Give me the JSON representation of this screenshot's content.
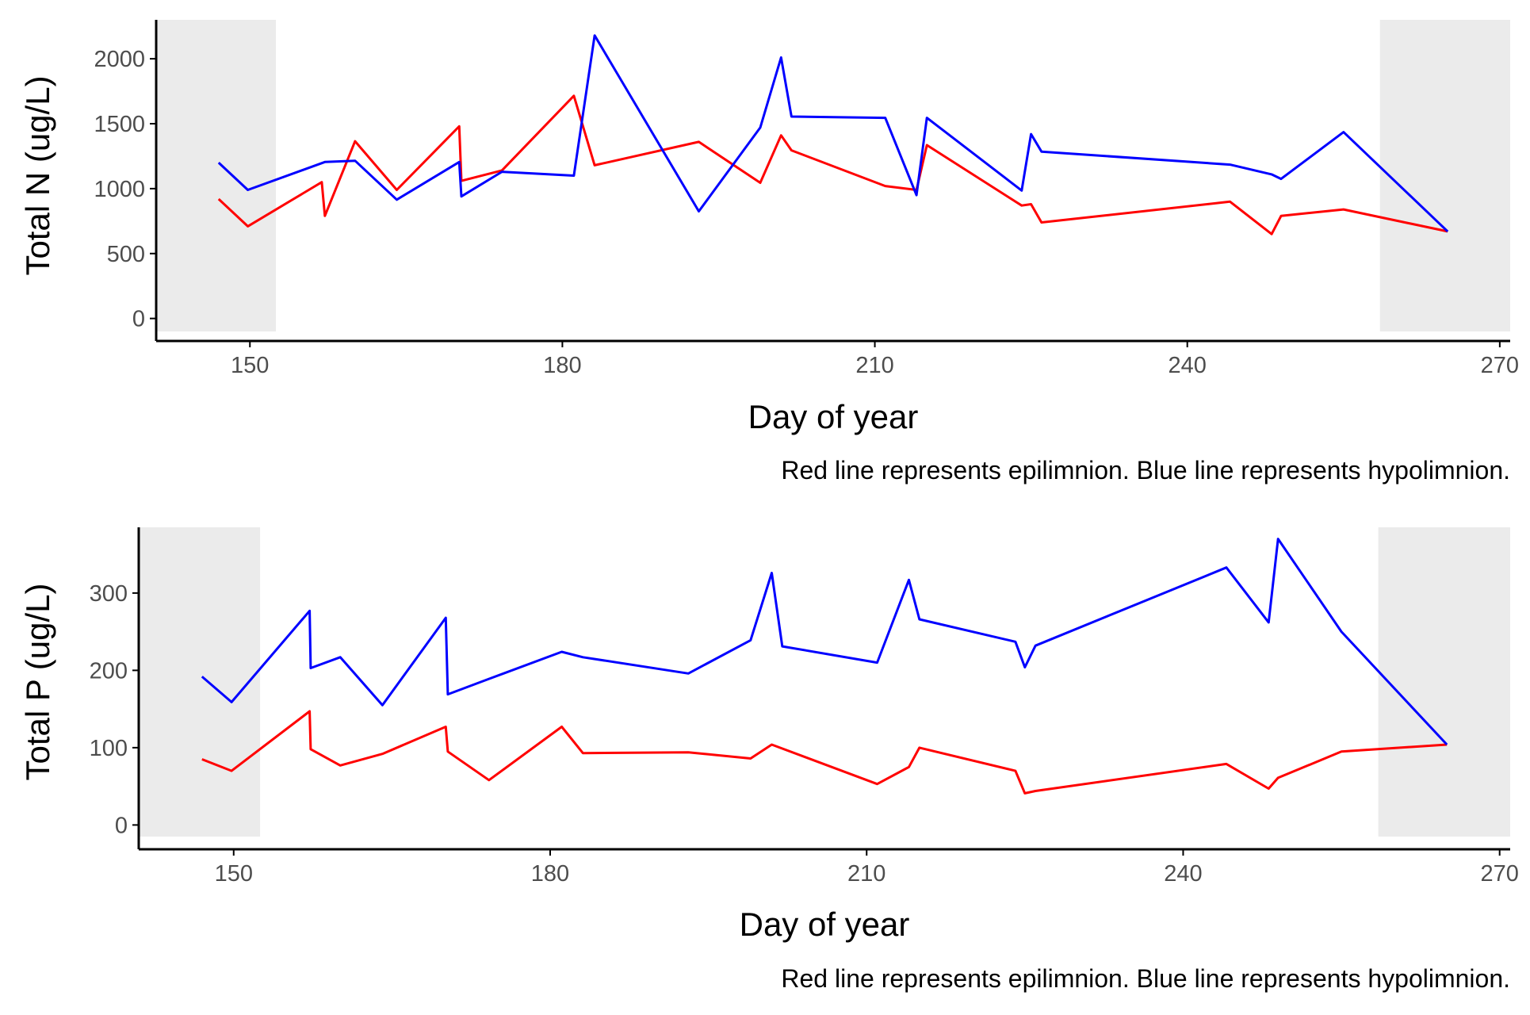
{
  "colors": {
    "epilimnion": "#ff0000",
    "hypolimnion": "#0000ff",
    "shade": "#ebebeb",
    "axis": "#000000",
    "tick_text": "#4d4d4d"
  },
  "chart_data": [
    {
      "type": "line",
      "xlabel": "Day of year",
      "ylabel": "Total N (ug/L)",
      "caption": "Red line represents epilimnion. Blue line represents hypolimnion.",
      "xlim": [
        141,
        271
      ],
      "ylim": [
        -100,
        2300
      ],
      "x_ticks": [
        150,
        180,
        210,
        240,
        270
      ],
      "y_ticks": [
        0,
        500,
        1000,
        1500,
        2000
      ],
      "grid": false,
      "shaded_ranges": [
        [
          141,
          152.5
        ],
        [
          258.5,
          271
        ]
      ],
      "series": [
        {
          "color": "red",
          "x": [
            147,
            149.8,
            156.9,
            157.2,
            160.1,
            164.1,
            170.1,
            170.3,
            174.2,
            181.1,
            183.1,
            193.1,
            199.0,
            201.0,
            202.0,
            211.0,
            214.0,
            215.0,
            224.1,
            225.0,
            226.0,
            244.1,
            248.1,
            249.0,
            255.0,
            265.0
          ],
          "y": [
            920,
            710,
            1050,
            790,
            1365,
            990,
            1480,
            1060,
            1140,
            1715,
            1180,
            1360,
            1045,
            1410,
            1295,
            1020,
            990,
            1335,
            870,
            880,
            740,
            900,
            650,
            790,
            840,
            670
          ]
        },
        {
          "color": "blue",
          "x": [
            147,
            149.8,
            157.2,
            160.1,
            164.1,
            170.1,
            170.3,
            174.2,
            181.1,
            183.1,
            193.1,
            199.0,
            201.0,
            202.0,
            211.0,
            214.0,
            215.0,
            224.1,
            225.0,
            226.0,
            244.1,
            248.1,
            249.0,
            255.0,
            265.0
          ],
          "y": [
            1200,
            990,
            1205,
            1215,
            915,
            1205,
            940,
            1130,
            1100,
            2180,
            825,
            1470,
            2010,
            1555,
            1545,
            950,
            1545,
            985,
            1420,
            1285,
            1185,
            1110,
            1075,
            1435,
            670
          ]
        }
      ]
    },
    {
      "type": "line",
      "xlabel": "Day of year",
      "ylabel": "Total P (ug/L)",
      "caption": "Red line represents epilimnion. Blue line represents hypolimnion.",
      "xlim": [
        141,
        271
      ],
      "ylim": [
        -15,
        385
      ],
      "x_ticks": [
        150,
        180,
        210,
        240,
        270
      ],
      "y_ticks": [
        0,
        100,
        200,
        300
      ],
      "grid": false,
      "shaded_ranges": [
        [
          141,
          152.5
        ],
        [
          258.5,
          271
        ]
      ],
      "series": [
        {
          "color": "red",
          "x": [
            147,
            149.8,
            157.2,
            157.3,
            160.1,
            164.1,
            170.1,
            170.3,
            174.2,
            181.1,
            183.1,
            193.1,
            199.0,
            201.0,
            211.0,
            214.0,
            215.0,
            224.1,
            225.0,
            226.0,
            244.1,
            248.1,
            249.0,
            255.0,
            265.0
          ],
          "y": [
            85,
            70,
            147,
            98,
            77,
            92,
            127,
            95,
            58,
            127,
            93,
            94,
            86,
            104,
            53,
            75,
            100,
            70,
            41,
            44,
            79,
            47,
            61,
            95,
            104
          ]
        },
        {
          "color": "blue",
          "x": [
            147,
            149.8,
            157.2,
            157.3,
            160.1,
            164.1,
            170.1,
            170.3,
            174.2,
            181.1,
            183.1,
            193.1,
            199.0,
            201.0,
            202.0,
            211.0,
            214.0,
            215.0,
            224.1,
            225.0,
            226.0,
            244.1,
            248.1,
            249.0,
            255.0,
            265.0
          ],
          "y": [
            192,
            159,
            277,
            203,
            217,
            155,
            268,
            169,
            189,
            224,
            217,
            196,
            239,
            326,
            231,
            210,
            317,
            266,
            237,
            204,
            232,
            333,
            262,
            370,
            250,
            104
          ]
        }
      ]
    }
  ]
}
